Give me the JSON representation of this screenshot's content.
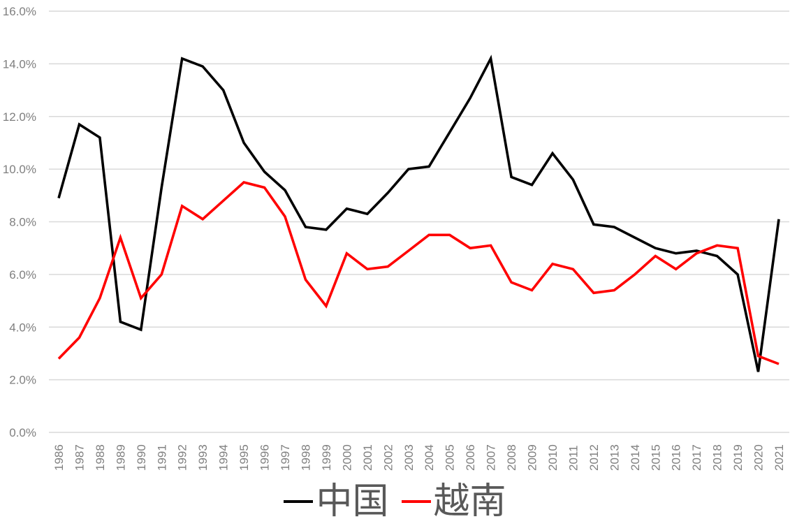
{
  "chart_data": {
    "type": "line",
    "title": "",
    "xlabel": "",
    "ylabel": "",
    "ylim": [
      0,
      16
    ],
    "y_ticks": [
      "0.0%",
      "2.0%",
      "4.0%",
      "6.0%",
      "8.0%",
      "10.0%",
      "12.0%",
      "14.0%",
      "16.0%"
    ],
    "grid": true,
    "legend_position": "bottom",
    "x": [
      "1986",
      "1987",
      "1988",
      "1989",
      "1990",
      "1991",
      "1992",
      "1993",
      "1994",
      "1995",
      "1996",
      "1997",
      "1998",
      "1999",
      "2000",
      "2001",
      "2002",
      "2003",
      "2004",
      "2005",
      "2006",
      "2007",
      "2008",
      "2009",
      "2010",
      "2011",
      "2012",
      "2013",
      "2014",
      "2015",
      "2016",
      "2017",
      "2018",
      "2019",
      "2020",
      "2021"
    ],
    "series": [
      {
        "name": "中国",
        "color": "#000000",
        "values": [
          8.9,
          11.7,
          11.2,
          4.2,
          3.9,
          9.3,
          14.2,
          13.9,
          13.0,
          11.0,
          9.9,
          9.2,
          7.8,
          7.7,
          8.5,
          8.3,
          9.1,
          10.0,
          10.1,
          11.4,
          12.7,
          14.2,
          9.7,
          9.4,
          10.6,
          9.6,
          7.9,
          7.8,
          7.4,
          7.0,
          6.8,
          6.9,
          6.7,
          6.0,
          2.3,
          8.1
        ]
      },
      {
        "name": "越南",
        "color": "#ff0000",
        "values": [
          2.8,
          3.6,
          5.1,
          7.4,
          5.1,
          6.0,
          8.6,
          8.1,
          8.8,
          9.5,
          9.3,
          8.2,
          5.8,
          4.8,
          6.8,
          6.2,
          6.3,
          6.9,
          7.5,
          7.5,
          7.0,
          7.1,
          5.7,
          5.4,
          6.4,
          6.2,
          5.3,
          5.4,
          6.0,
          6.7,
          6.2,
          6.8,
          7.1,
          7.0,
          2.9,
          2.6
        ]
      }
    ]
  },
  "legend": {
    "items": [
      {
        "label": "中国",
        "color": "#000000"
      },
      {
        "label": "越南",
        "color": "#ff0000"
      }
    ]
  }
}
